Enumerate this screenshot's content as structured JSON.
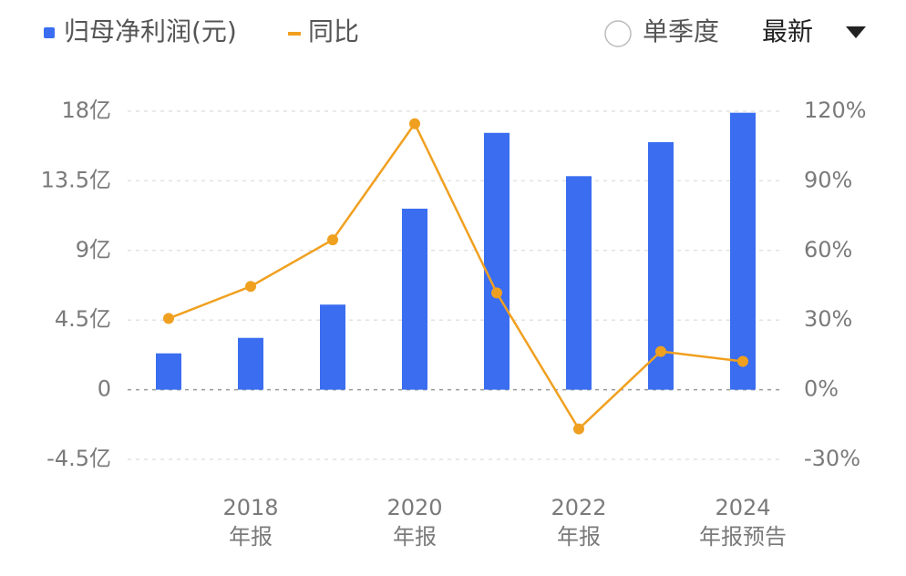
{
  "chart_data": {
    "type": "bar-line",
    "legend_toggle": "单季度",
    "period_select": "最新",
    "categories": [
      null,
      "2018",
      null,
      "2020",
      null,
      "2022",
      null,
      "2024"
    ],
    "category_sublabels": [
      null,
      "年报",
      null,
      "年报",
      null,
      "年报",
      null,
      "年报预告"
    ],
    "series": [
      {
        "name": "归母净利润(元)",
        "color": "#3a6df0",
        "type": "bar",
        "values": [
          2.35,
          3.35,
          5.5,
          11.7,
          16.6,
          13.8,
          16.0,
          17.9
        ]
      },
      {
        "name": "同比",
        "color": "#f0a020",
        "type": "line",
        "axis": "y2",
        "values": [
          30.7,
          44.5,
          64.6,
          114.6,
          41.7,
          -16.9,
          16.5,
          12.2
        ]
      }
    ],
    "ylim": [
      -4.5,
      18
    ],
    "yticks": [
      {
        "value": -4.5,
        "label": "-4.5亿"
      },
      0,
      {
        "value": 4.5,
        "label": "4.5亿"
      },
      {
        "value": 9,
        "label": "9亿"
      },
      {
        "value": 13.5,
        "label": "13.5亿"
      },
      {
        "value": 18,
        "label": "18亿"
      }
    ],
    "y2lim": [
      -30,
      120
    ],
    "y2ticks": [
      {
        "value": -30,
        "label": "-30%"
      },
      {
        "value": 0,
        "label": "0%"
      },
      {
        "value": 30,
        "label": "30%"
      },
      {
        "value": 60,
        "label": "60%"
      },
      {
        "value": 90,
        "label": "90%"
      },
      {
        "value": 120,
        "label": "120%"
      }
    ],
    "grid": true
  }
}
